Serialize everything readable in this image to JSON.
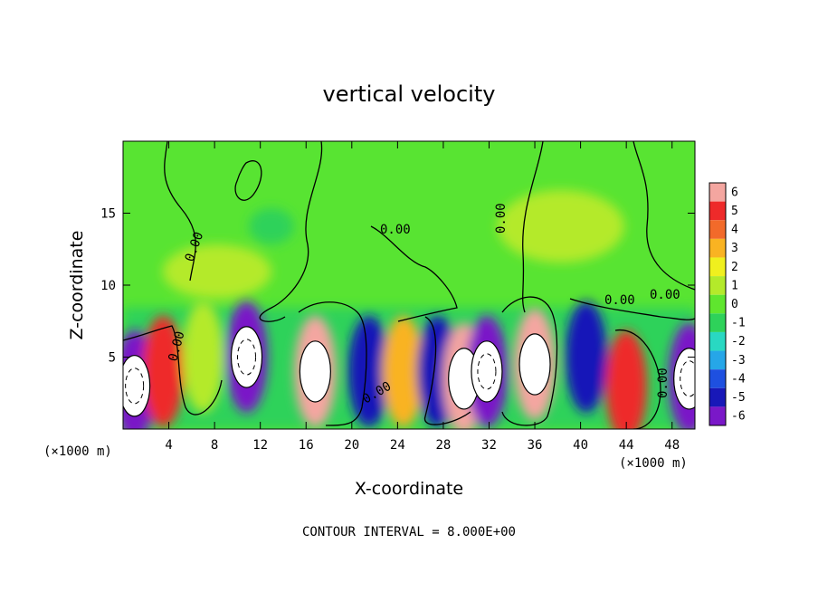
{
  "chart_data": {
    "type": "heatmap",
    "title": "vertical velocity",
    "xlabel": "X-coordinate",
    "ylabel": "Z-coordinate",
    "x_unit_note": "(×1000 m)",
    "x_unit_note_right": "(×1000 m)",
    "xlim": [
      0,
      50
    ],
    "ylim": [
      0,
      20
    ],
    "x_ticks": [
      4,
      8,
      12,
      16,
      20,
      24,
      28,
      32,
      36,
      40,
      44,
      48
    ],
    "y_ticks": [
      5,
      10,
      15
    ],
    "colorbar": {
      "levels": [
        6,
        5,
        4,
        3,
        2,
        1,
        0,
        -1,
        -2,
        -3,
        -4,
        -5,
        -6
      ],
      "colors": [
        "#f4a6a0",
        "#ee2a2a",
        "#f26a2a",
        "#f9b322",
        "#f0f01e",
        "#b4ea2a",
        "#5fe62e",
        "#2ed25a",
        "#29d8c2",
        "#26a6e8",
        "#1e50e0",
        "#1818b8",
        "#7a18c8"
      ]
    },
    "contour_labels": [
      "0.00",
      "0.00",
      "0.00",
      "0.00",
      "0.00",
      "0.00",
      "0.00",
      "0.00"
    ],
    "cells": [
      {
        "x": 1.0,
        "z": 3.0,
        "value": -6,
        "peak": true
      },
      {
        "x": 3.5,
        "z": 4.0,
        "value": 5
      },
      {
        "x": 7.0,
        "z": 5.0,
        "value": 1
      },
      {
        "x": 10.8,
        "z": 5.0,
        "value": -6,
        "peak": true
      },
      {
        "x": 16.8,
        "z": 4.0,
        "value": 6,
        "peak": true
      },
      {
        "x": 21.5,
        "z": 4.0,
        "value": -5
      },
      {
        "x": 24.5,
        "z": 4.0,
        "value": 3
      },
      {
        "x": 27.5,
        "z": 4.0,
        "value": -5
      },
      {
        "x": 29.8,
        "z": 3.5,
        "value": 6,
        "peak": true
      },
      {
        "x": 31.8,
        "z": 4.0,
        "value": -6,
        "peak": true
      },
      {
        "x": 36.0,
        "z": 4.5,
        "value": 6,
        "peak": true
      },
      {
        "x": 40.5,
        "z": 5.0,
        "value": -5
      },
      {
        "x": 44.0,
        "z": 3.0,
        "value": 5
      },
      {
        "x": 49.5,
        "z": 3.5,
        "value": -6,
        "peak": true
      }
    ],
    "footer": "CONTOUR INTERVAL = 8.000E+00"
  }
}
